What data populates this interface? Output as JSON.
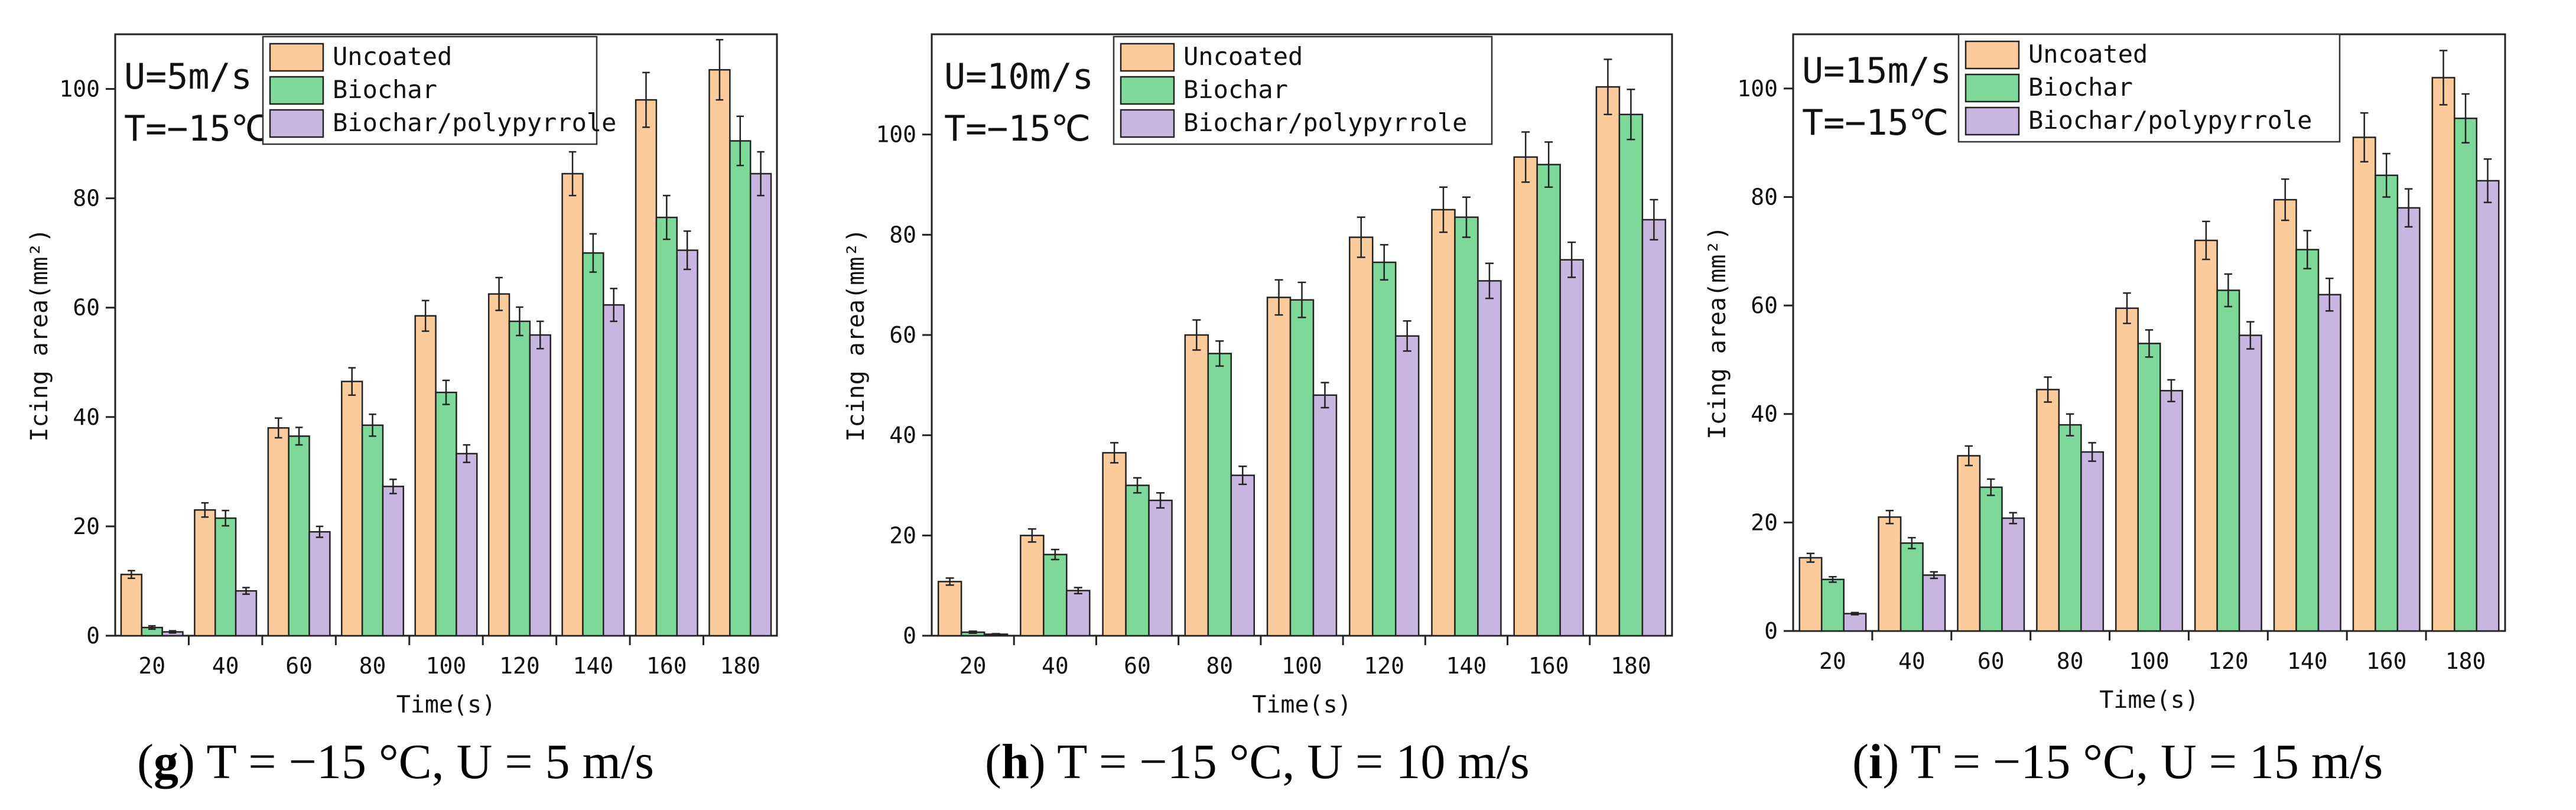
{
  "colors": {
    "uncoated": "#FBCB9B",
    "biochar": "#7DD89A",
    "biochar_polypyrrole": "#C8B6E0",
    "edge": "#222222"
  },
  "chart_data": [
    {
      "type": "bar",
      "panel": "g",
      "caption": {
        "letter": "g",
        "text": ") T = −15 °C, U = 5 m/s"
      },
      "annotation": [
        "U=5m/s",
        "T=−15℃"
      ],
      "xlabel": "Time(s)",
      "ylabel": "Icing area(mm²)",
      "categories": [
        "20",
        "40",
        "60",
        "80",
        "100",
        "120",
        "140",
        "160",
        "180"
      ],
      "ylim": [
        0,
        110
      ],
      "yticks": [
        0,
        20,
        40,
        60,
        80,
        100
      ],
      "series": [
        {
          "name": "Uncoated",
          "values": [
            11.2,
            23.0,
            38.0,
            46.5,
            58.5,
            62.5,
            84.5,
            98.0,
            103.5
          ],
          "errors": [
            0.7,
            1.3,
            1.8,
            2.5,
            2.8,
            3.0,
            4.0,
            5.0,
            5.5
          ]
        },
        {
          "name": "Biochar",
          "values": [
            1.5,
            21.5,
            36.5,
            38.5,
            44.5,
            57.5,
            70.0,
            76.5,
            90.5
          ],
          "errors": [
            0.3,
            1.4,
            1.6,
            2.0,
            2.2,
            2.6,
            3.5,
            4.0,
            4.5
          ]
        },
        {
          "name": "Biochar/polypyrrole",
          "values": [
            0.7,
            8.2,
            19.0,
            27.3,
            33.3,
            55.0,
            60.5,
            70.5,
            84.5
          ],
          "errors": [
            0.2,
            0.6,
            1.0,
            1.3,
            1.6,
            2.5,
            3.0,
            3.5,
            4.0
          ]
        }
      ]
    },
    {
      "type": "bar",
      "panel": "h",
      "caption": {
        "letter": "h",
        "text": ") T = −15 °C, U = 10 m/s"
      },
      "annotation": [
        "U=10m/s",
        "T=−15℃"
      ],
      "xlabel": "Time(s)",
      "ylabel": "Icing area(mm²)",
      "categories": [
        "20",
        "40",
        "60",
        "80",
        "100",
        "120",
        "140",
        "160",
        "180"
      ],
      "ylim": [
        0,
        120
      ],
      "yticks": [
        0,
        20,
        40,
        60,
        80,
        100
      ],
      "series": [
        {
          "name": "Uncoated",
          "values": [
            10.8,
            20.0,
            36.5,
            60.0,
            67.5,
            79.5,
            85.0,
            95.5,
            109.5
          ],
          "errors": [
            0.7,
            1.3,
            2.0,
            3.0,
            3.5,
            4.0,
            4.5,
            5.0,
            5.5
          ]
        },
        {
          "name": "Biochar",
          "values": [
            0.7,
            16.2,
            30.0,
            56.3,
            67.0,
            74.5,
            83.5,
            94.0,
            104.0
          ],
          "errors": [
            0.2,
            1.0,
            1.5,
            2.5,
            3.5,
            3.5,
            4.0,
            4.5,
            5.0
          ]
        },
        {
          "name": "Biochar/polypyrrole",
          "values": [
            0.3,
            9.0,
            27.0,
            32.0,
            48.0,
            59.8,
            70.8,
            75.0,
            83.0
          ],
          "errors": [
            0.1,
            0.6,
            1.5,
            1.8,
            2.5,
            3.0,
            3.5,
            3.5,
            4.0
          ]
        }
      ]
    },
    {
      "type": "bar",
      "panel": "i",
      "caption": {
        "letter": "i",
        "text": ") T = −15 °C, U = 15 m/s"
      },
      "annotation": [
        "U=15m/s",
        "T=−15℃"
      ],
      "xlabel": "Time(s)",
      "ylabel": "Icing area(mm²)",
      "categories": [
        "20",
        "40",
        "60",
        "80",
        "100",
        "120",
        "140",
        "160",
        "180"
      ],
      "ylim": [
        0,
        110
      ],
      "yticks": [
        0,
        20,
        40,
        60,
        80,
        100
      ],
      "series": [
        {
          "name": "Uncoated",
          "values": [
            13.5,
            21.0,
            32.3,
            44.5,
            59.5,
            72.0,
            79.5,
            91.0,
            102.0
          ],
          "errors": [
            0.8,
            1.2,
            1.8,
            2.3,
            2.8,
            3.5,
            3.8,
            4.5,
            5.0
          ]
        },
        {
          "name": "Biochar",
          "values": [
            9.5,
            16.2,
            26.5,
            38.0,
            53.0,
            62.8,
            70.3,
            84.0,
            94.5
          ],
          "errors": [
            0.5,
            1.0,
            1.5,
            2.0,
            2.5,
            3.0,
            3.5,
            4.0,
            4.5
          ]
        },
        {
          "name": "Biochar/polypyrrole",
          "values": [
            3.2,
            10.3,
            20.8,
            33.0,
            44.3,
            54.5,
            62.0,
            78.0,
            83.0
          ],
          "errors": [
            0.2,
            0.6,
            1.0,
            1.7,
            2.0,
            2.5,
            3.0,
            3.5,
            4.0
          ]
        }
      ]
    }
  ]
}
